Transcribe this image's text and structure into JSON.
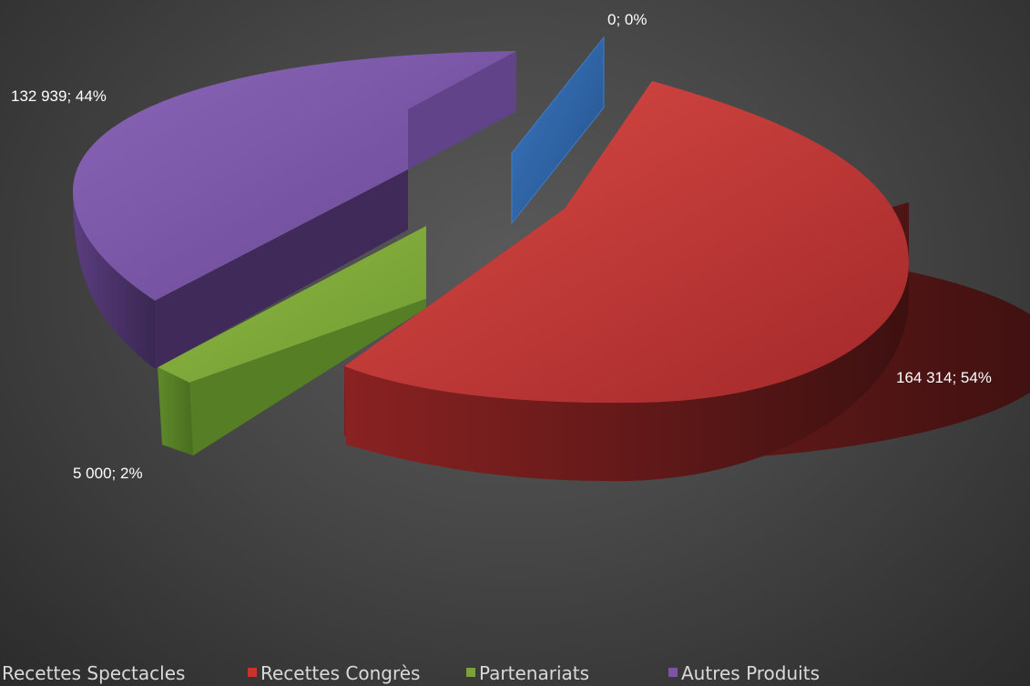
{
  "chart_data": {
    "type": "pie",
    "style": "3d-exploded",
    "title": "",
    "categories": [
      "Recettes Spectacles",
      "Recettes Congrès",
      "Partenariats",
      "Autres Produits"
    ],
    "values": [
      0,
      164314,
      5000,
      132939
    ],
    "percentages": [
      0,
      54,
      2,
      44
    ],
    "data_labels": [
      "0; 0%",
      "164 314; 54%",
      "5 000; 2%",
      "132 939; 44%"
    ],
    "colors": [
      "#2e66a8",
      "#c8332e",
      "#7aa23a",
      "#7b54a6"
    ],
    "legend_position": "bottom"
  }
}
